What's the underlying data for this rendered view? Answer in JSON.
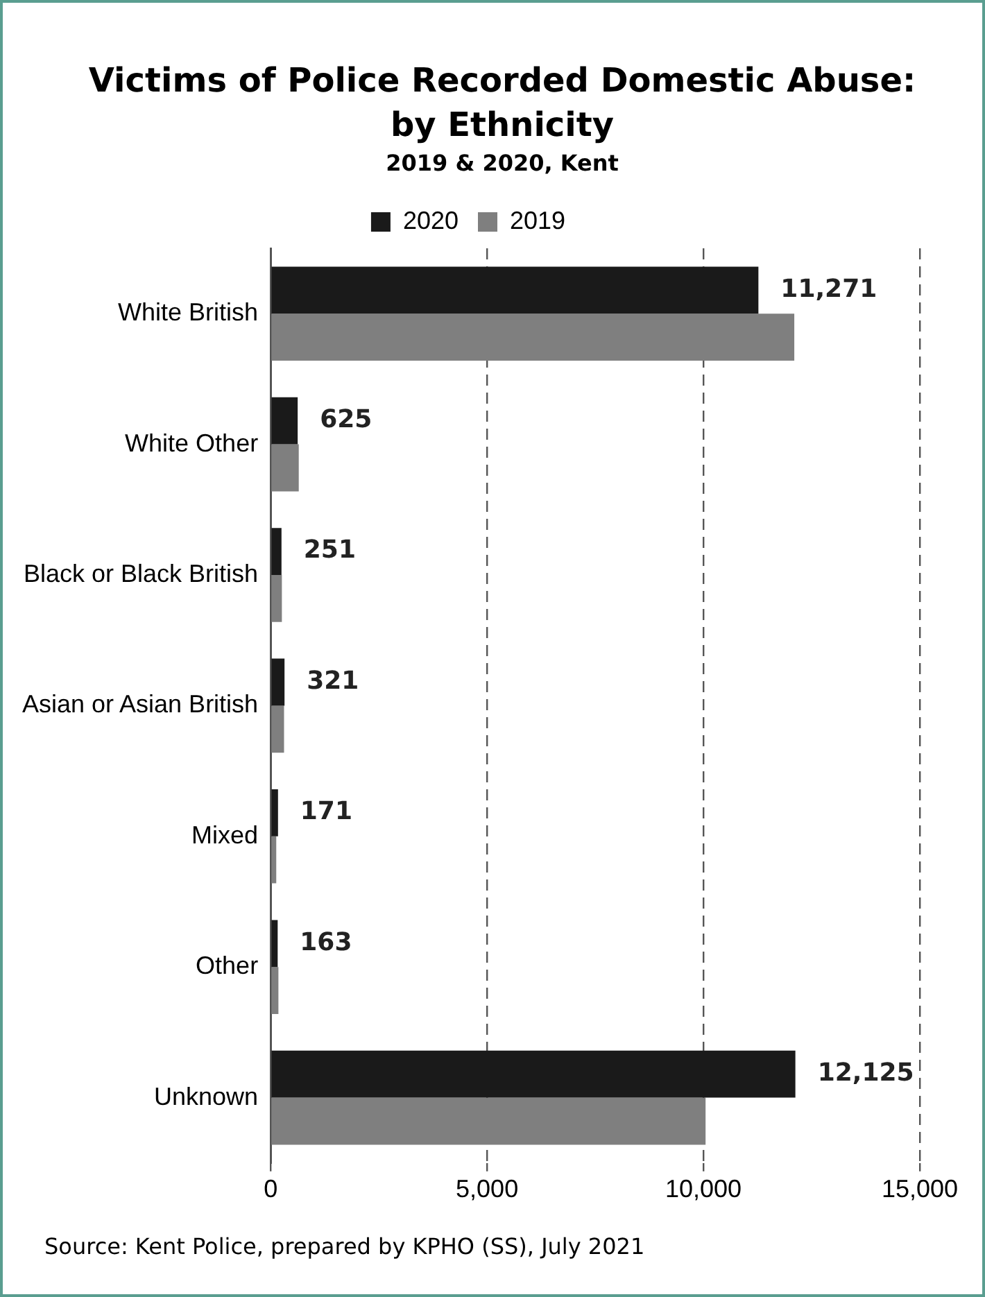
{
  "chart_data": {
    "type": "bar",
    "orientation": "horizontal",
    "title": "Victims of Police Recorded Domestic Abuse: by Ethnicity",
    "subtitle": "2019 & 2020, Kent",
    "categories": [
      "White British",
      "White Other",
      "Black or Black British",
      "Asian or Asian British",
      "Mixed",
      "Other",
      "Unknown"
    ],
    "series": [
      {
        "name": "2020",
        "color": "#1a1a1a",
        "values": [
          11271,
          625,
          251,
          321,
          171,
          163,
          12125
        ],
        "value_labels": [
          "11,271",
          "625",
          "251",
          "321",
          "171",
          "163",
          "12,125"
        ]
      },
      {
        "name": "2019",
        "color": "#7f7f7f",
        "values": [
          12100,
          650,
          260,
          310,
          130,
          180,
          10050
        ]
      }
    ],
    "xlim": [
      0,
      15000
    ],
    "xticks": [
      0,
      {
        "value": 5000,
        "label": "5,000"
      },
      {
        "value": 10000,
        "label": "10,000"
      },
      {
        "value": 15000,
        "label": "15,000"
      }
    ],
    "grid": "x",
    "legend": "top",
    "annotations": [
      "Source: Kent Police, prepared by KPHO (SS), July 2021"
    ]
  }
}
